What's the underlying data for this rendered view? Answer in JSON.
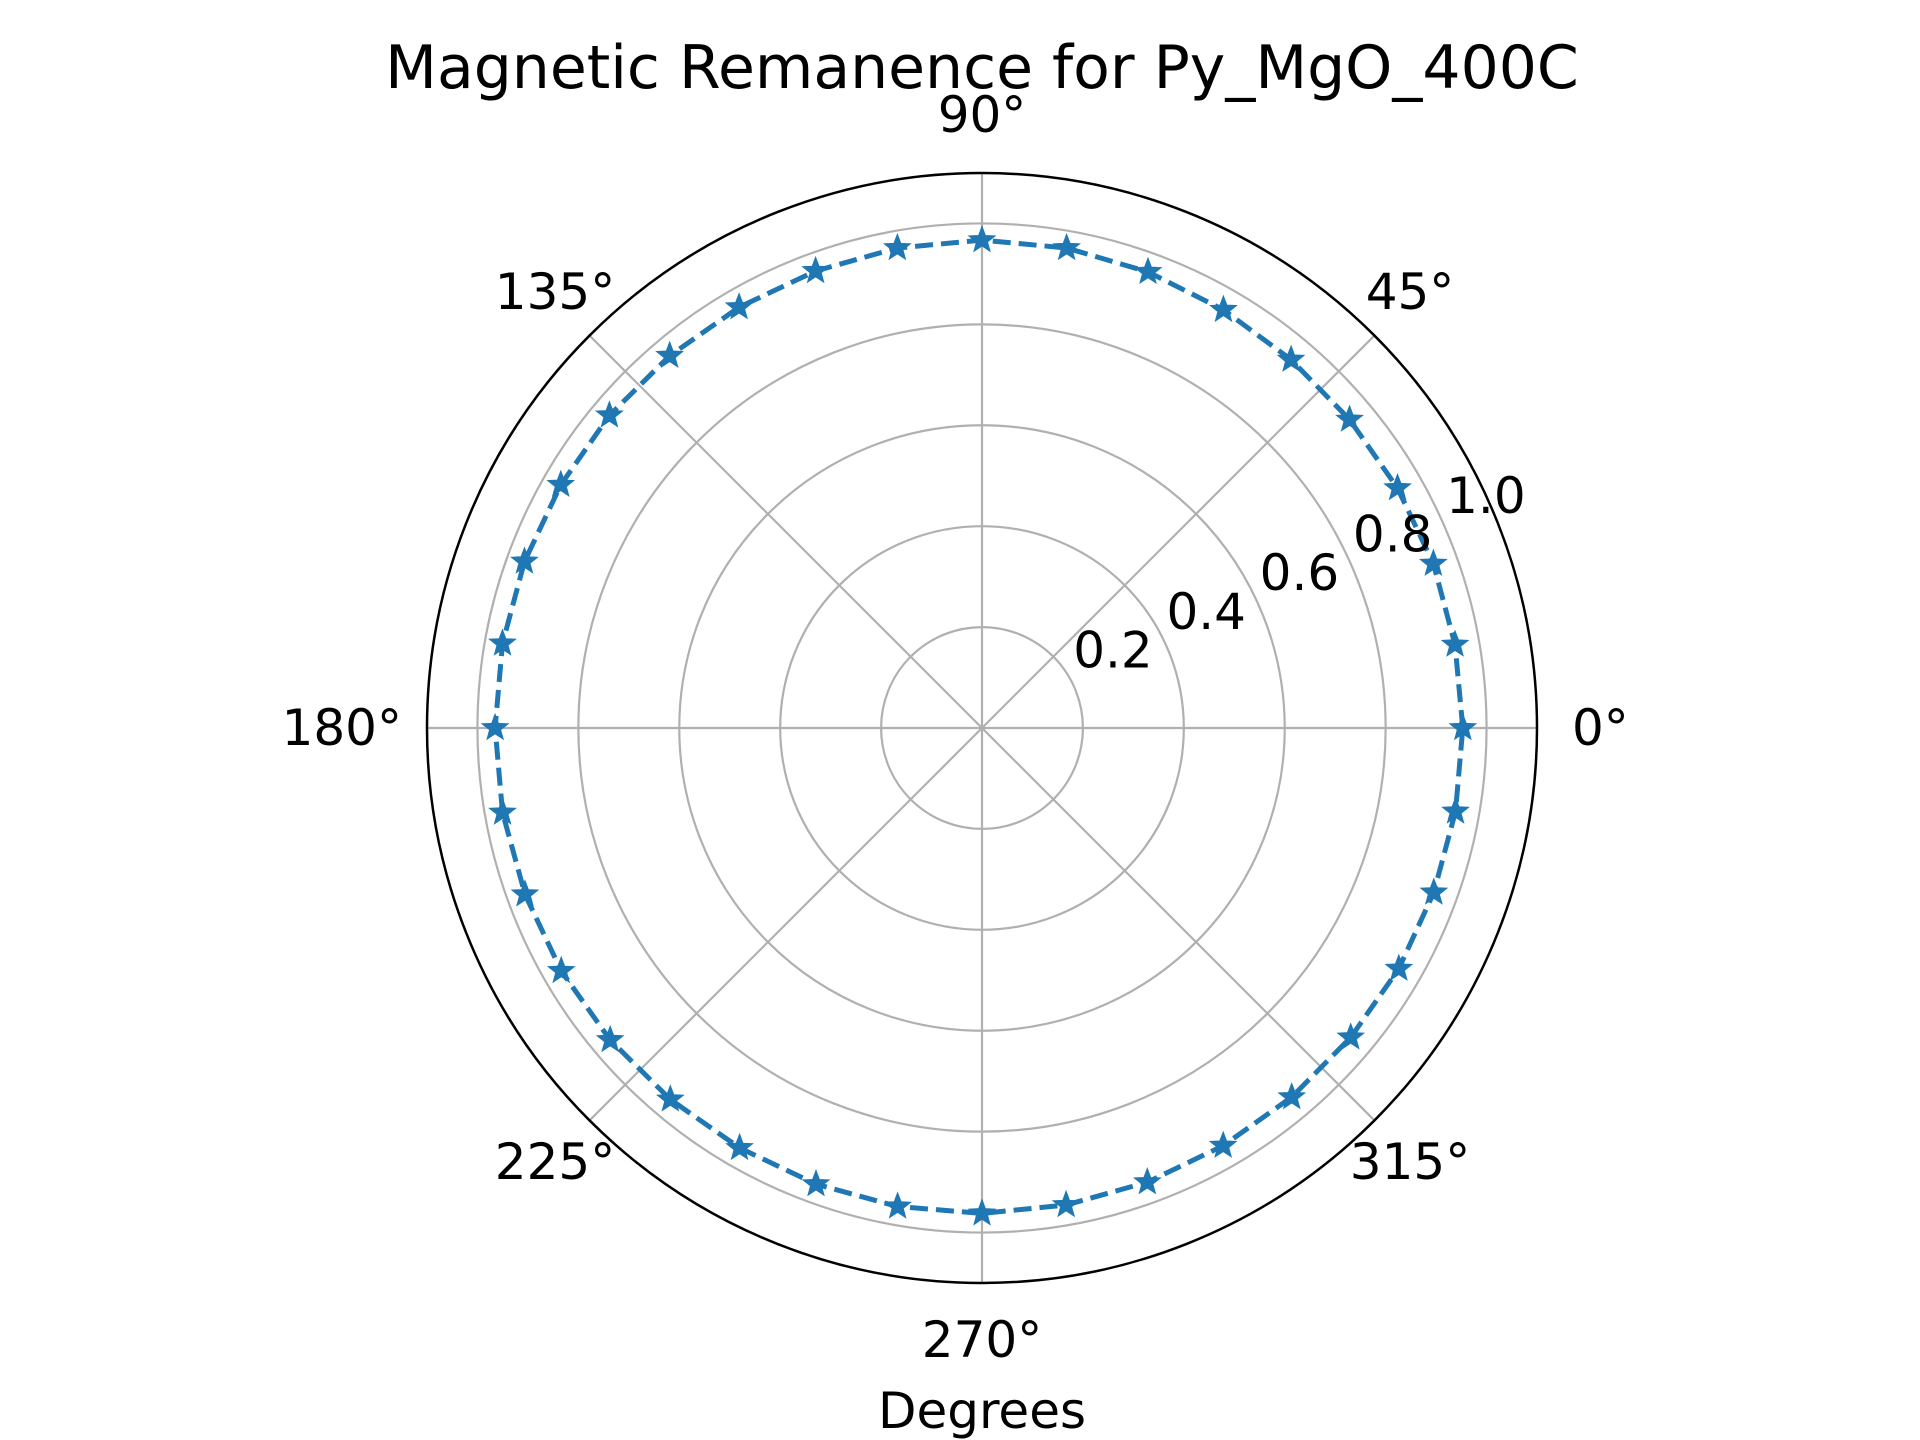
{
  "chart_data": {
    "type": "polar-line",
    "title": "Magnetic Remanence for Py_MgO_400C",
    "xlabel": "Degrees",
    "angle_tick_labels": [
      "0°",
      "45°",
      "90°",
      "135°",
      "180°",
      "225°",
      "270°",
      "315°"
    ],
    "angle_tick_values_deg": [
      0,
      45,
      90,
      135,
      180,
      225,
      270,
      315
    ],
    "radial_tick_labels": [
      "0.2",
      "0.4",
      "0.6",
      "0.8",
      "1.0"
    ],
    "radial_tick_values": [
      0.2,
      0.4,
      0.6,
      0.8,
      1.0
    ],
    "rlim": [
      0,
      1.1
    ],
    "grid": true,
    "series": [
      {
        "color": "#1f77b4",
        "linestyle": "dashed",
        "marker": "star",
        "theta_deg": [
          0,
          10,
          20,
          30,
          40,
          50,
          60,
          70,
          80,
          90,
          100,
          110,
          120,
          130,
          140,
          150,
          160,
          170,
          180,
          190,
          200,
          210,
          220,
          230,
          240,
          250,
          260,
          270,
          280,
          290,
          300,
          310,
          320,
          330,
          340,
          350
        ],
        "r": [
          0.953,
          0.952,
          0.952,
          0.951,
          0.951,
          0.953,
          0.957,
          0.962,
          0.966,
          0.967,
          0.966,
          0.964,
          0.963,
          0.963,
          0.964,
          0.964,
          0.965,
          0.965,
          0.965,
          0.965,
          0.964,
          0.963,
          0.962,
          0.961,
          0.961,
          0.962,
          0.963,
          0.962,
          0.96,
          0.958,
          0.956,
          0.955,
          0.954,
          0.954,
          0.953,
          0.953
        ]
      }
    ]
  }
}
